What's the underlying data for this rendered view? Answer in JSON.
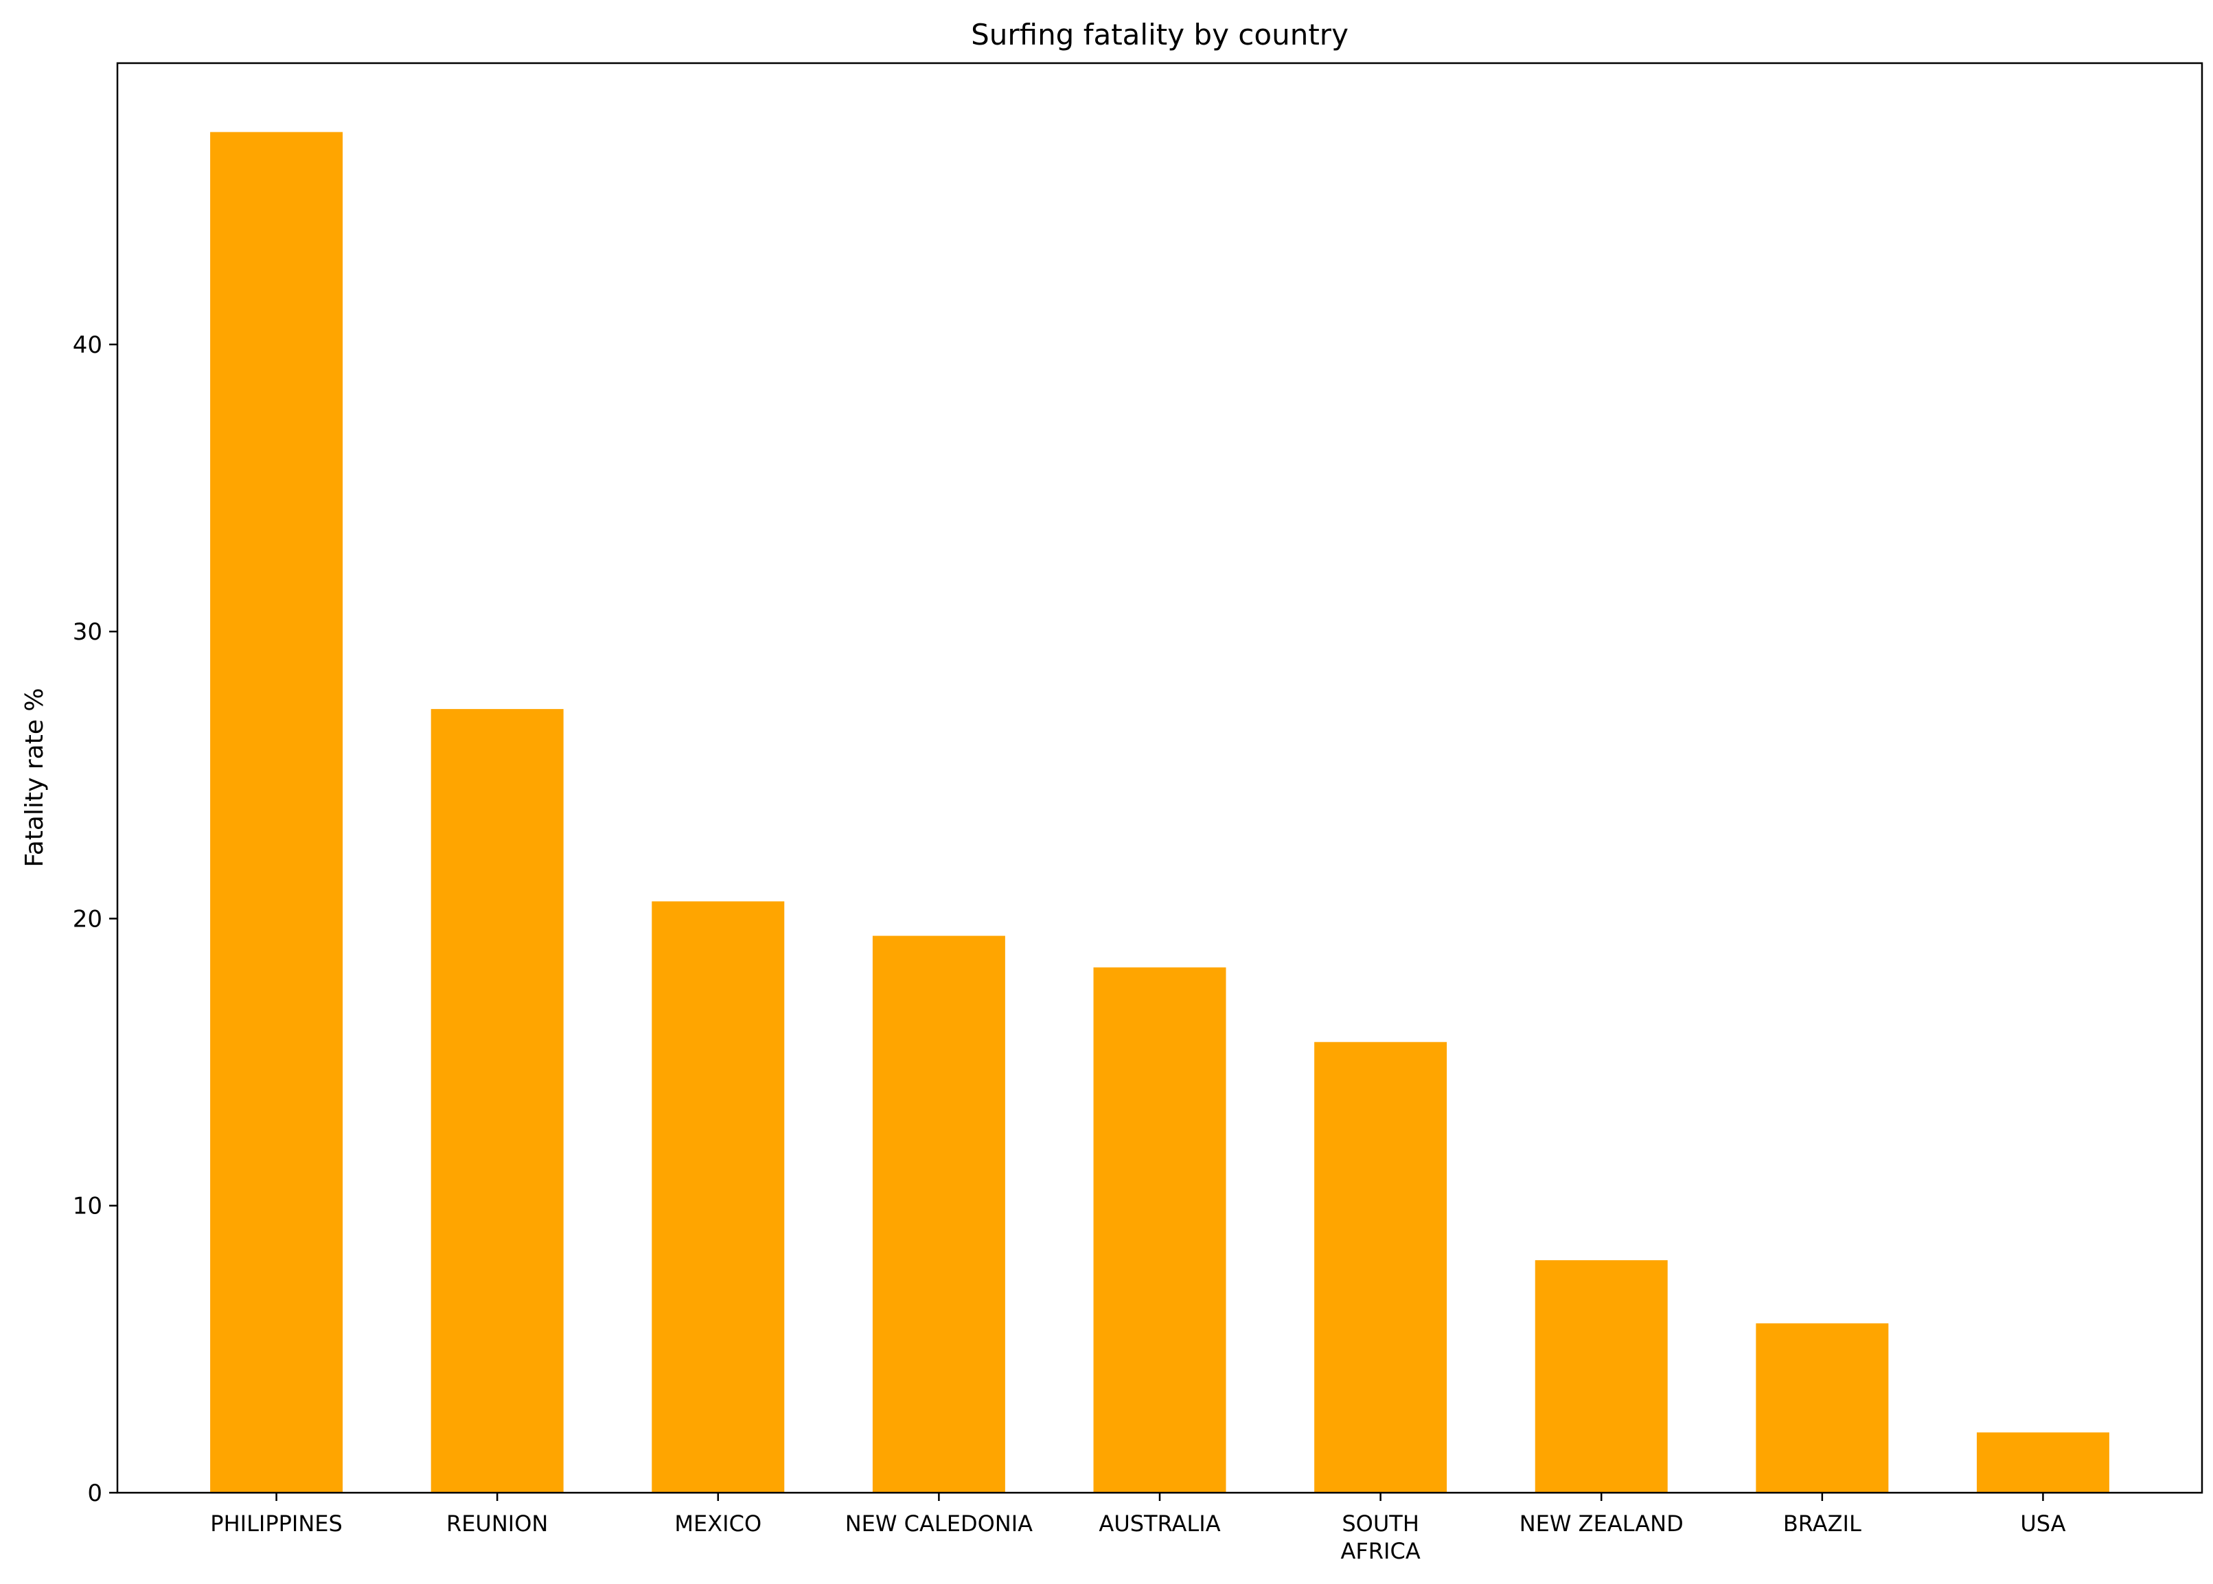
{
  "chart_data": {
    "type": "bar",
    "title": "Surfing fatality by country",
    "xlabel": "",
    "ylabel": "Fatality rate %",
    "categories": [
      "PHILIPPINES",
      "REUNION",
      "MEXICO",
      "NEW CALEDONIA",
      "AUSTRALIA",
      "SOUTH AFRICA",
      "NEW ZEALAND",
      "BRAZIL",
      "USA"
    ],
    "category_lines": [
      [
        "PHILIPPINES"
      ],
      [
        "REUNION"
      ],
      [
        "MEXICO"
      ],
      [
        "NEW CALEDONIA"
      ],
      [
        "AUSTRALIA"
      ],
      [
        "SOUTH",
        "AFRICA"
      ],
      [
        "NEW ZEALAND"
      ],
      [
        "BRAZIL"
      ],
      [
        "USA"
      ]
    ],
    "values": [
      47.4,
      27.3,
      20.6,
      19.4,
      18.3,
      15.7,
      8.1,
      5.9,
      2.1
    ],
    "yticks": [
      0,
      10,
      20,
      30,
      40
    ],
    "ylim": [
      0,
      49.8
    ],
    "bar_color": "#FFA500",
    "grid": false,
    "legend": "none"
  }
}
